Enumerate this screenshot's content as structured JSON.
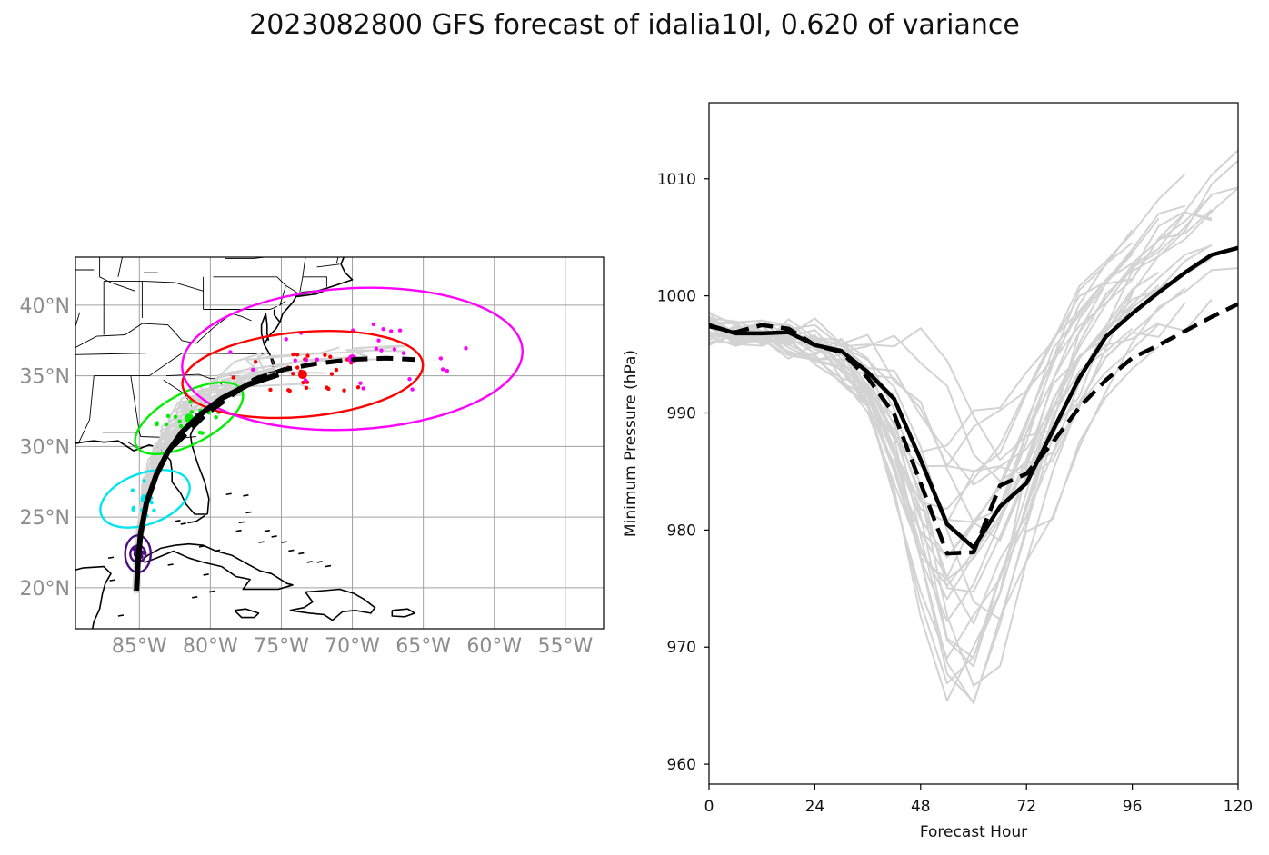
{
  "title": "2023082800 GFS forecast of idalia10l, 0.620 of variance",
  "colors": {
    "ensemble": "#d3d3d3",
    "mean": "#000000",
    "coast": "#000000",
    "grid": "#a0a0a0",
    "ellipses": [
      "#4b0d82",
      "#00e5ee",
      "#00ee00",
      "#ff0000",
      "#ff00ff"
    ]
  },
  "chart_data": [
    {
      "type": "scatter",
      "panel": "track map",
      "x_ticks": [
        "85°W",
        "80°W",
        "75°W",
        "70°W",
        "65°W",
        "60°W",
        "55°W"
      ],
      "y_ticks": [
        "20°N",
        "25°N",
        "30°N",
        "35°N",
        "40°N"
      ],
      "xlim": [
        -89.5,
        -52.3
      ],
      "ylim": [
        17.1,
        43.4
      ],
      "grid": true,
      "mean_track": {
        "lon": [
          -85.2,
          -85.1,
          -84.9,
          -84.5,
          -83.8,
          -83.0,
          -82.0,
          -80.8,
          -79.2,
          -77.3,
          -75.2,
          -73.0,
          -70.5,
          -68.0,
          -66.0
        ],
        "lat": [
          19.8,
          21.8,
          23.9,
          26.0,
          28.0,
          29.6,
          31.0,
          32.2,
          33.4,
          34.4,
          35.1,
          35.5,
          35.8,
          35.9,
          35.8
        ]
      },
      "ellipse_centers": [
        {
          "lon": -85.1,
          "lat": 22.4,
          "color": "#4b0d82"
        },
        {
          "lon": -84.6,
          "lat": 26.3,
          "color": "#00e5ee"
        },
        {
          "lon": -81.5,
          "lat": 32.0,
          "color": "#00ee00"
        },
        {
          "lon": -73.5,
          "lat": 35.1,
          "color": "#ff0000"
        },
        {
          "lon": -70.0,
          "lat": 36.2,
          "color": "#ff00ff"
        }
      ]
    },
    {
      "type": "line",
      "panel": "intensity",
      "xlabel": "Forecast Hour",
      "ylabel": "Minimum Pressure (hPa)",
      "x_ticks": [
        "0",
        "24",
        "48",
        "72",
        "96",
        "120"
      ],
      "y_ticks": [
        "960",
        "970",
        "980",
        "990",
        "1000",
        "1010"
      ],
      "xlim": [
        0,
        120
      ],
      "ylim": [
        958.3,
        1016.5
      ],
      "x": [
        0,
        6,
        12,
        18,
        24,
        30,
        36,
        42,
        48,
        54,
        60,
        66,
        72,
        78,
        84,
        90,
        96,
        102,
        108,
        114,
        120
      ],
      "series": [
        {
          "style": "solid",
          "values": [
            997.5,
            996.8,
            996.8,
            996.9,
            995.8,
            995.3,
            993.5,
            991.2,
            986.0,
            980.5,
            978.5,
            982.0,
            984.0,
            988.5,
            993.0,
            996.5,
            998.5,
            1000.3,
            1002.0,
            1003.5,
            1004.1
          ]
        },
        {
          "style": "dashed",
          "values": [
            997.4,
            996.9,
            997.5,
            997.2,
            995.8,
            995.2,
            993.0,
            989.9,
            984.0,
            978.0,
            978.1,
            983.8,
            984.8,
            987.5,
            990.5,
            992.8,
            994.7,
            995.8,
            997.0,
            998.2,
            999.3
          ]
        }
      ]
    }
  ]
}
